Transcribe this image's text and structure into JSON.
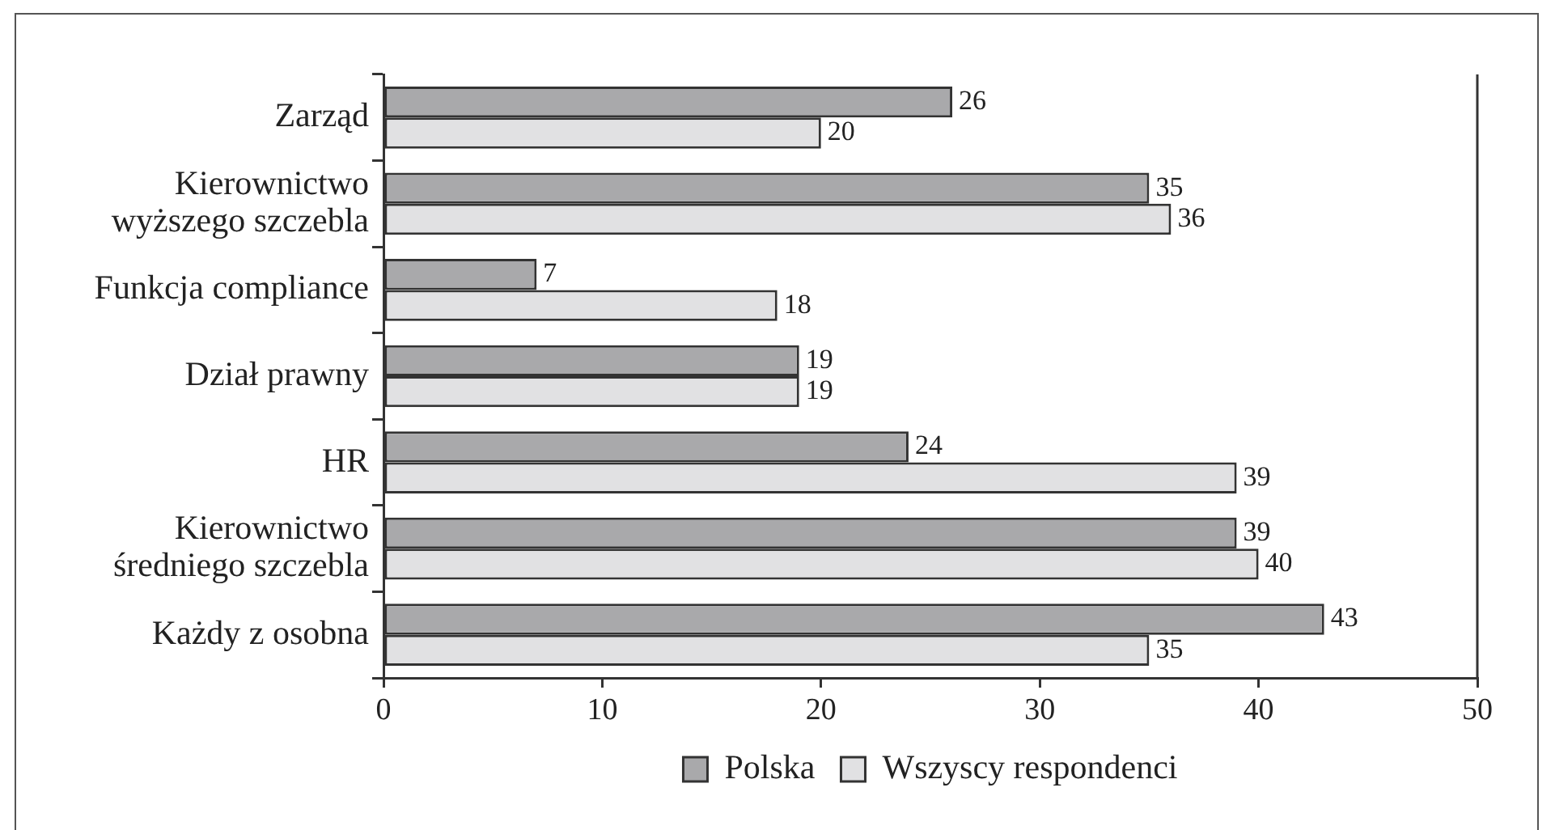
{
  "chart_data": {
    "type": "bar",
    "orientation": "horizontal",
    "categories": [
      "Zarząd",
      "Kierownictwo wyższego szczebla",
      "Funkcja compliance",
      "Dział prawny",
      "HR",
      "Kierownictwo średniego szczebla",
      "Każdy z osobna"
    ],
    "series": [
      {
        "name": "Polska",
        "color": "#a9a9ab",
        "values": [
          26,
          35,
          7,
          19,
          24,
          39,
          43
        ]
      },
      {
        "name": "Wszyscy respondenci",
        "color": "#e1e1e3",
        "values": [
          20,
          36,
          18,
          19,
          39,
          40,
          35
        ]
      }
    ],
    "xlim": [
      0,
      50
    ],
    "xticks": [
      0,
      10,
      20,
      30,
      40,
      50
    ],
    "data_labels": true,
    "legend": "bottom"
  }
}
